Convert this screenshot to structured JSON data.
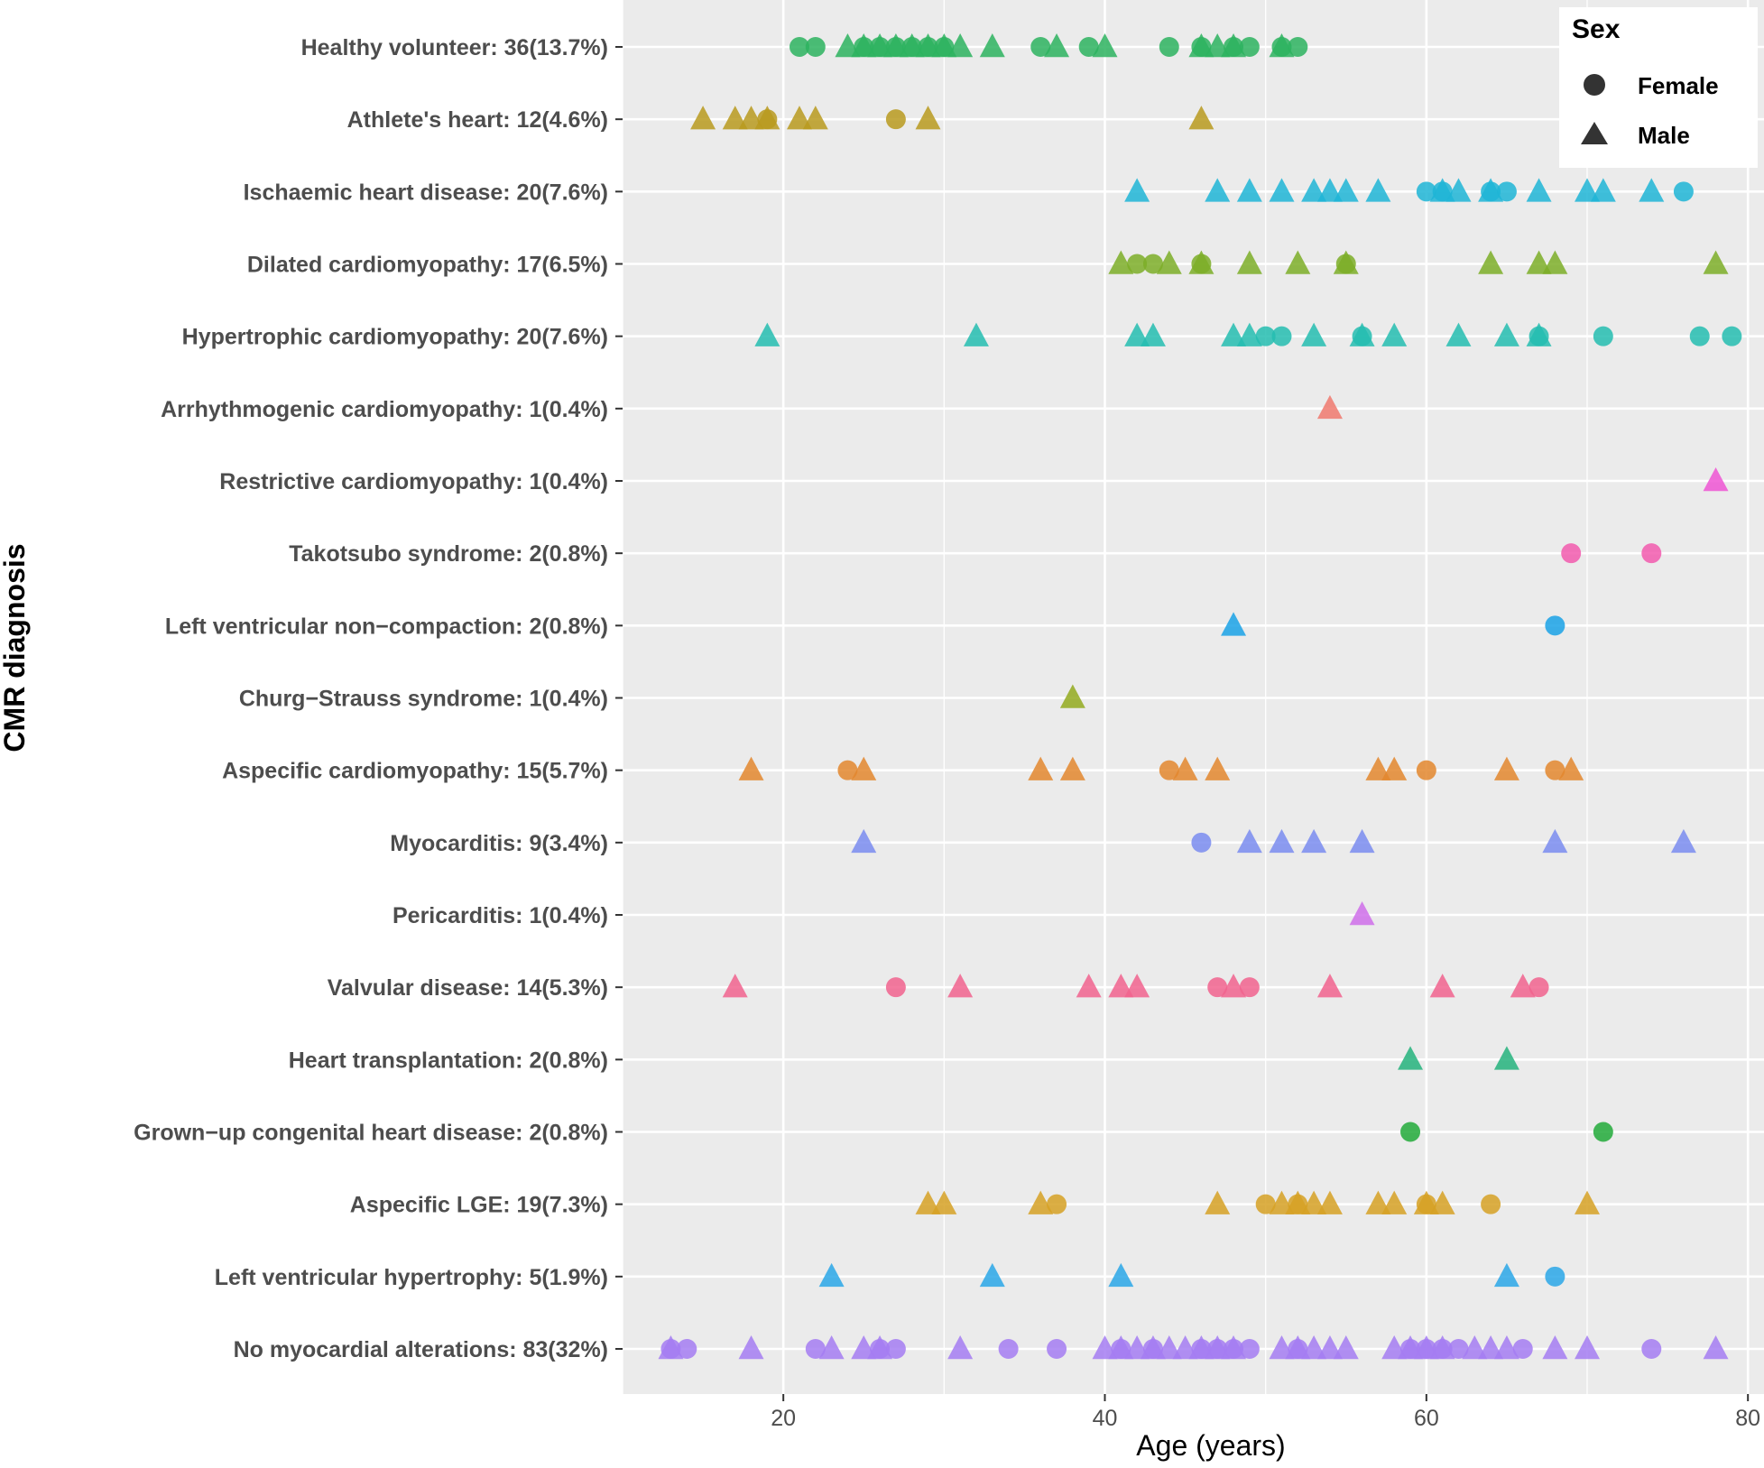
{
  "chart_data": {
    "type": "scatter",
    "xlabel": "Age (years)",
    "ylabel": "CMR diagnosis",
    "xlim": [
      10,
      81
    ],
    "xticks": [
      20,
      40,
      60,
      80
    ],
    "legend": {
      "title": "Sex",
      "position": "top-right",
      "entries": [
        {
          "label": "Female",
          "shape": "circle"
        },
        {
          "label": "Male",
          "shape": "triangle"
        }
      ]
    },
    "categories": [
      {
        "label": "Healthy volunteer: 36(13.7%)",
        "color": "#2DB35F",
        "female": [
          21,
          22,
          25,
          26,
          27,
          28,
          29,
          30,
          36,
          39,
          44,
          46,
          48,
          49,
          51,
          52
        ],
        "male": [
          24,
          25,
          26,
          27,
          28,
          29,
          30,
          31,
          33,
          37,
          40,
          46,
          47,
          48,
          51
        ]
      },
      {
        "label": "Athlete's heart: 12(4.6%)",
        "color": "#B89A1E",
        "female": [
          19,
          27
        ],
        "male": [
          15,
          17,
          18,
          19,
          21,
          22,
          29,
          46
        ]
      },
      {
        "label": "Ischaemic heart disease: 20(7.6%)",
        "color": "#1FB5D6",
        "female": [
          60,
          61,
          64,
          65,
          76
        ],
        "male": [
          42,
          47,
          49,
          51,
          53,
          54,
          55,
          57,
          61,
          62,
          64,
          67,
          70,
          71,
          74
        ]
      },
      {
        "label": "Dilated cardiomyopathy: 17(6.5%)",
        "color": "#7DAE28",
        "female": [
          42,
          43,
          46,
          55
        ],
        "male": [
          41,
          44,
          46,
          49,
          52,
          55,
          64,
          67,
          68,
          78
        ]
      },
      {
        "label": "Hypertrophic cardiomyopathy: 20(7.6%)",
        "color": "#25BDB0",
        "female": [
          50,
          51,
          56,
          67,
          71,
          77,
          79
        ],
        "male": [
          19,
          32,
          42,
          43,
          48,
          49,
          53,
          56,
          58,
          62,
          65,
          67
        ]
      },
      {
        "label": "Arrhythmogenic cardiomyopathy: 1(0.4%)",
        "color": "#F0796F",
        "female": [],
        "male": [
          54
        ]
      },
      {
        "label": "Restrictive cardiomyopathy: 1(0.4%)",
        "color": "#EE55D3",
        "female": [],
        "male": [
          78
        ]
      },
      {
        "label": "Takotsubo syndrome: 2(0.8%)",
        "color": "#F25AAE",
        "female": [
          69,
          74
        ],
        "male": []
      },
      {
        "label": "Left ventricular non−compaction: 2(0.8%)",
        "color": "#1AA2E6",
        "female": [
          68
        ],
        "male": [
          48
        ]
      },
      {
        "label": "Churg−Strauss syndrome: 1(0.4%)",
        "color": "#93AA1E",
        "female": [],
        "male": [
          38
        ]
      },
      {
        "label": "Aspecific cardiomyopathy: 15(5.7%)",
        "color": "#E3872E",
        "female": [
          24,
          44,
          60,
          68
        ],
        "male": [
          18,
          25,
          36,
          38,
          45,
          47,
          57,
          58,
          65,
          69
        ]
      },
      {
        "label": "Myocarditis: 9(3.4%)",
        "color": "#7A8CF0",
        "female": [
          46
        ],
        "male": [
          25,
          49,
          51,
          53,
          56,
          68,
          76
        ]
      },
      {
        "label": "Pericarditis: 1(0.4%)",
        "color": "#CF6EEA",
        "female": [],
        "male": [
          56
        ]
      },
      {
        "label": "Valvular disease: 14(5.3%)",
        "color": "#F1638E",
        "female": [
          27,
          47,
          49,
          67
        ],
        "male": [
          17,
          31,
          39,
          41,
          42,
          48,
          54,
          61,
          66
        ]
      },
      {
        "label": "Heart transplantation: 2(0.8%)",
        "color": "#25B37C",
        "female": [],
        "male": [
          59,
          65
        ]
      },
      {
        "label": "Grown−up congenital heart disease: 2(0.8%)",
        "color": "#22AA3A",
        "female": [
          59,
          71
        ],
        "male": []
      },
      {
        "label": "Aspecific LGE: 19(7.3%)",
        "color": "#D6A125",
        "female": [
          37,
          50,
          52,
          60,
          64
        ],
        "male": [
          29,
          30,
          36,
          47,
          51,
          52,
          53,
          54,
          57,
          58,
          60,
          61,
          70
        ]
      },
      {
        "label": "Left ventricular hypertrophy: 5(1.9%)",
        "color": "#2AA7E8",
        "female": [
          68
        ],
        "male": [
          23,
          33,
          41,
          65
        ]
      },
      {
        "label": "No myocardial alterations: 83(32%)",
        "color": "#A57CF2",
        "female": [
          13,
          14,
          22,
          26,
          27,
          34,
          37,
          41,
          43,
          46,
          47,
          48,
          49,
          52,
          59,
          60,
          61,
          62,
          66,
          74
        ],
        "male": [
          13,
          18,
          23,
          25,
          26,
          31,
          40,
          41,
          42,
          43,
          44,
          45,
          46,
          47,
          48,
          51,
          52,
          53,
          54,
          55,
          58,
          59,
          60,
          61,
          63,
          64,
          65,
          68,
          70,
          78
        ]
      }
    ]
  }
}
